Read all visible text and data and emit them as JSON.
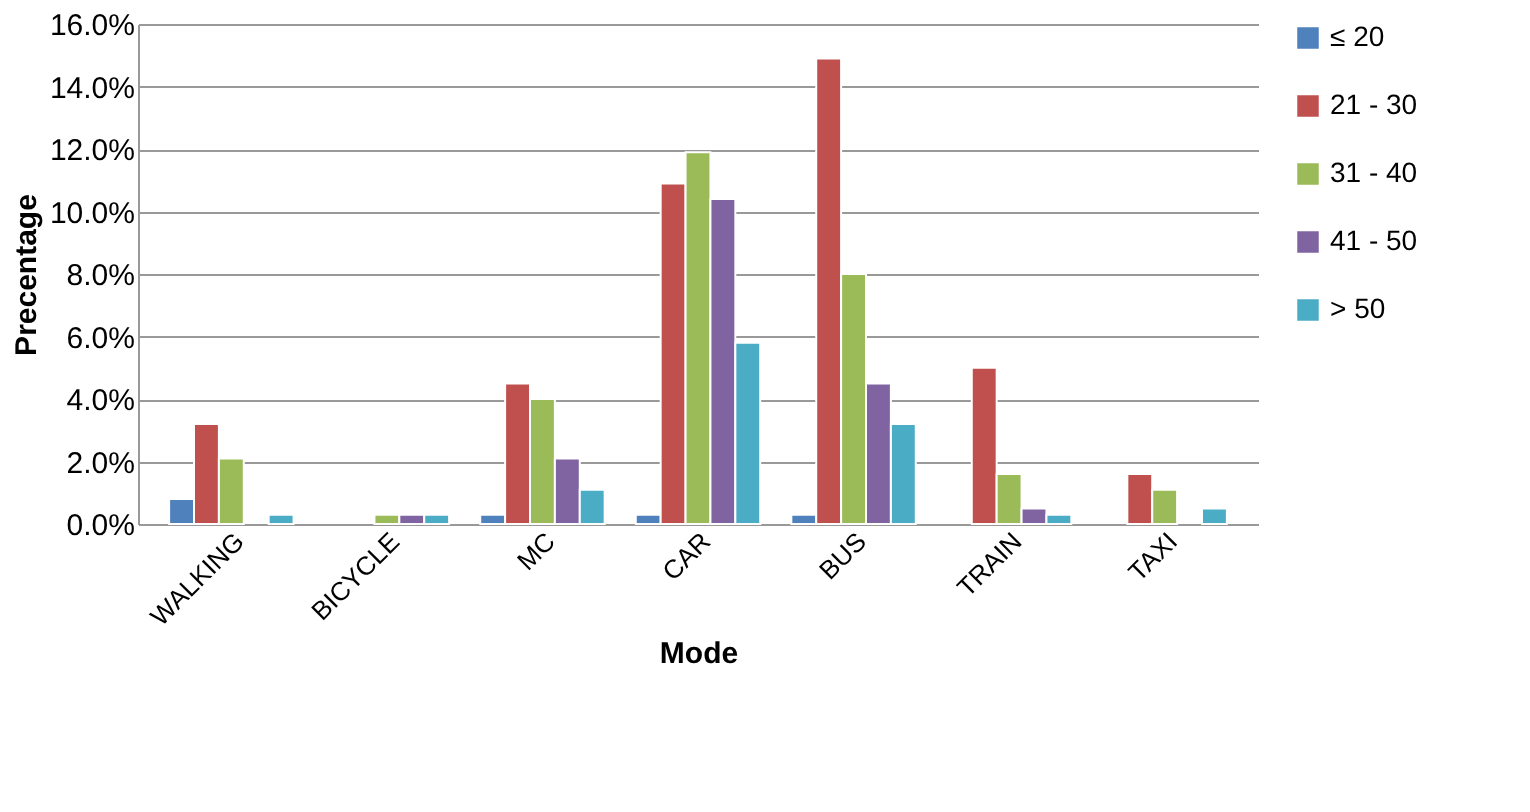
{
  "chart_data": {
    "type": "bar",
    "xlabel": "Mode",
    "ylabel": "Precentage",
    "categories": [
      "WALKING",
      "BICYCLE",
      "MC",
      "CAR",
      "BUS",
      "TRAIN",
      "TAXI"
    ],
    "series": [
      {
        "name": "≤ 20",
        "color": "#4f81bd",
        "values": [
          0.8,
          null,
          0.3,
          0.3,
          0.3,
          null,
          null
        ]
      },
      {
        "name": "21 - 30",
        "color": "#c0504d",
        "values": [
          3.2,
          null,
          4.5,
          10.9,
          14.9,
          5.0,
          1.6
        ]
      },
      {
        "name": "31 - 40",
        "color": "#9bbb59",
        "values": [
          2.1,
          0.3,
          4.0,
          11.9,
          8.0,
          1.6,
          1.1
        ]
      },
      {
        "name": "41 - 50",
        "color": "#8064a2",
        "values": [
          null,
          0.3,
          2.1,
          10.4,
          4.5,
          0.5,
          null
        ]
      },
      {
        "name": "> 50",
        "color": "#4bacc6",
        "values": [
          0.3,
          0.3,
          1.1,
          5.8,
          3.2,
          0.3,
          0.5
        ]
      }
    ],
    "ylim": [
      0,
      16
    ],
    "yticks": [
      {
        "value": 0,
        "label": "0.0%"
      },
      {
        "value": 2,
        "label": "2.0%"
      },
      {
        "value": 4,
        "label": "4.0%"
      },
      {
        "value": 6,
        "label": "6.0%"
      },
      {
        "value": 8,
        "label": "8.0%"
      },
      {
        "value": 10,
        "label": "10.0%"
      },
      {
        "value": 12,
        "label": "12.0%"
      },
      {
        "value": 14,
        "label": "14.0%"
      },
      {
        "value": 16,
        "label": "16.0%"
      }
    ],
    "grid": "y",
    "legend": "right"
  }
}
